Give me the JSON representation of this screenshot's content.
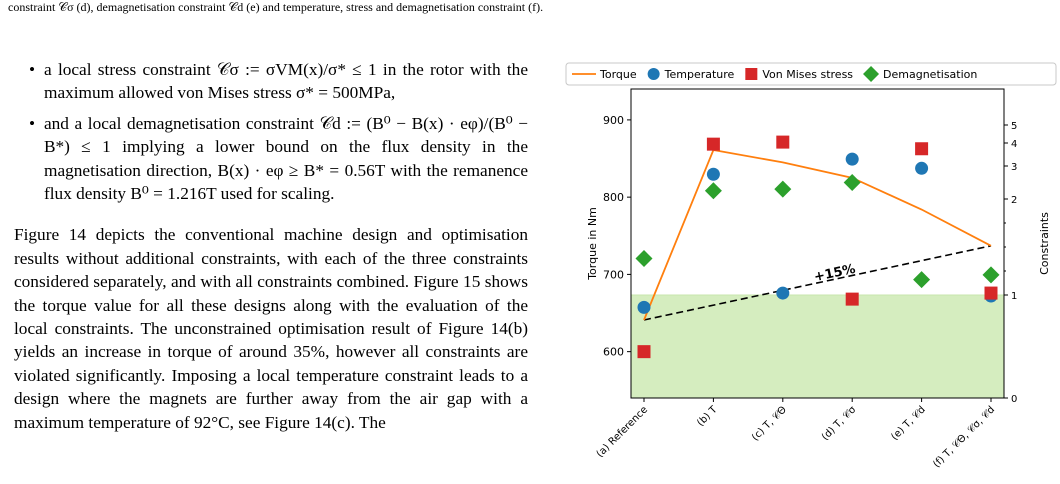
{
  "caption_line": "constraint 𝒞σ (d), demagnetisation constraint 𝒞d (e) and temperature, stress and demagnetisation constraint (f).",
  "bullets": [
    "a local stress constraint 𝒞σ := σVM(x)/σ* ≤ 1 in the rotor with the maximum allowed von Mises stress σ* = 500MPa,",
    "and a local demagnetisation constraint 𝒞d := (B⁰ − B(x) · eφ)/(B⁰ − B*) ≤ 1 implying a lower bound on the flux density in the magnetisation direction, B(x) · eφ ≥ B* = 0.56T with the remanence flux density B⁰ = 1.216T used for scaling."
  ],
  "paragraph": "Figure 14 depicts the conventional machine design and optimisation results without additional constraints, with each of the three constraints considered separately, and with all constraints combined. Figure 15 shows the torque value for all these designs along with the evaluation of the local constraints. The unconstrained optimisation result of Figure 14(b) yields an increase in torque of around 35%, however all constraints are violated significantly. Imposing a local temperature constraint leads to a design where the magnets are further away from the air gap with a maximum temperature of 92°C, see Figure 14(c). The",
  "chart_data": {
    "type": "line",
    "categories": [
      "(a) Reference",
      "(b) T",
      "(c) T, 𝒞Θ",
      "(d) T, 𝒞σ",
      "(e) T, 𝒞d",
      "(f) T, 𝒞Θ, 𝒞σ, 𝒞d"
    ],
    "ylabel": "Torque in Nm",
    "y2label": "Constraints",
    "ylim": [
      540,
      940
    ],
    "yticks": [
      600,
      700,
      800,
      900
    ],
    "y2ticks": [
      0,
      1,
      2,
      3,
      4,
      5
    ],
    "y2_scale": "nonlinear",
    "legend_position": "top",
    "feasible_region": {
      "y2_max": 1,
      "color": "#d5edbf"
    },
    "series": [
      {
        "name": "Torque",
        "kind": "line",
        "axis": "left",
        "color": "#ff7f0e",
        "values": [
          641,
          861,
          845,
          825,
          784,
          737
        ]
      },
      {
        "name": "Temperature",
        "kind": "circle",
        "axis": "right",
        "color": "#1f77b4",
        "values": [
          0.88,
          2.75,
          1.02,
          3.3,
          2.93,
          0.99
        ]
      },
      {
        "name": "Von Mises stress",
        "kind": "square",
        "axis": "right",
        "color": "#d62728",
        "values": [
          0.45,
          3.95,
          4.05,
          0.96,
          3.75,
          1.02
        ]
      },
      {
        "name": "Demagnetisation",
        "kind": "diamond",
        "axis": "right",
        "color": "#2ca02c",
        "values": [
          1.38,
          2.25,
          2.3,
          2.5,
          1.16,
          1.21
        ]
      }
    ],
    "trend": {
      "label": "+15%",
      "from": 641,
      "to": 737,
      "color": "#000000"
    }
  }
}
